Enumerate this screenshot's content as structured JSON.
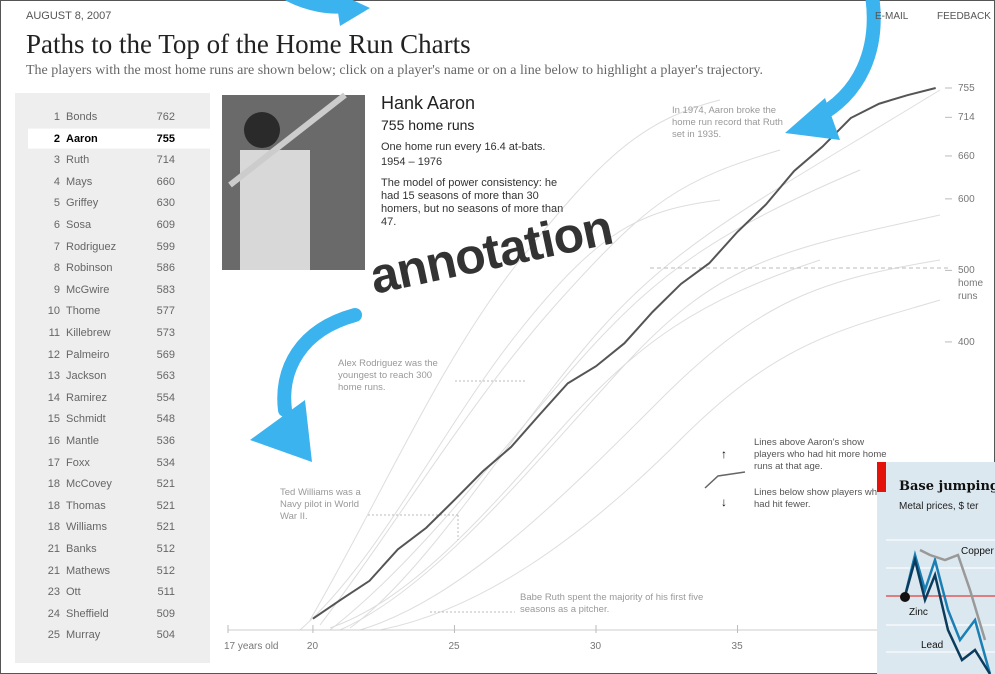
{
  "header": {
    "date": "AUGUST 8, 2007",
    "links": [
      "E-MAIL",
      "FEEDBACK"
    ],
    "title": "Paths to the Top of the Home Run Charts",
    "subtitle": "The players with the most home runs are shown below; click on a player's name or on a line below to highlight a player's trajectory."
  },
  "players": [
    [
      "1",
      "Bonds",
      "762"
    ],
    [
      "2",
      "Aaron",
      "755"
    ],
    [
      "3",
      "Ruth",
      "714"
    ],
    [
      "4",
      "Mays",
      "660"
    ],
    [
      "5",
      "Griffey",
      "630"
    ],
    [
      "6",
      "Sosa",
      "609"
    ],
    [
      "7",
      "Rodriguez",
      "599"
    ],
    [
      "8",
      "Robinson",
      "586"
    ],
    [
      "9",
      "McGwire",
      "583"
    ],
    [
      "10",
      "Thome",
      "577"
    ],
    [
      "11",
      "Killebrew",
      "573"
    ],
    [
      "12",
      "Palmeiro",
      "569"
    ],
    [
      "13",
      "Jackson",
      "563"
    ],
    [
      "14",
      "Ramirez",
      "554"
    ],
    [
      "15",
      "Schmidt",
      "548"
    ],
    [
      "16",
      "Mantle",
      "536"
    ],
    [
      "17",
      "Foxx",
      "534"
    ],
    [
      "18",
      "McCovey",
      "521"
    ],
    [
      "18",
      "Thomas",
      "521"
    ],
    [
      "18",
      "Williams",
      "521"
    ],
    [
      "21",
      "Banks",
      "512"
    ],
    [
      "21",
      "Mathews",
      "512"
    ],
    [
      "23",
      "Ott",
      "511"
    ],
    [
      "24",
      "Sheffield",
      "509"
    ],
    [
      "25",
      "Murray",
      "504"
    ]
  ],
  "feature": {
    "name": "Hank Aaron",
    "total": "755 home runs",
    "rate": "One home run every 16.4 at-bats.",
    "years": "1954 – 1976",
    "text": "The model of power consistency: he had 15 seasons of more than 30 homers, but no seasons of more than 47."
  },
  "chart_data": {
    "type": "line",
    "x": [
      20,
      21,
      22,
      23,
      24,
      25,
      26,
      27,
      28,
      29,
      30,
      31,
      32,
      33,
      34,
      35,
      36,
      37,
      38,
      39,
      40,
      41,
      42
    ],
    "series": [
      {
        "name": "Aaron",
        "color": "#555555",
        "values": [
          13,
          40,
          66,
          110,
          140,
          179,
          219,
          253,
          298,
          342,
          366,
          398,
          442,
          481,
          510,
          554,
          592,
          639,
          673,
          713,
          733,
          745,
          755
        ]
      }
    ],
    "xlim": [
      17,
      43
    ],
    "ylim": [
      0,
      755
    ],
    "xticks": [
      {
        "value": 17,
        "label": "17 years old"
      },
      20,
      25,
      30,
      35
    ],
    "yticks": [
      755,
      714,
      660,
      600,
      {
        "value": 500,
        "label": "500 home runs"
      },
      400
    ],
    "annotations": [
      "In 1974, Aaron broke the home run record that Ruth set in 1935.",
      "Alex Rodriguez was the youngest to reach 300 home runs.",
      "Ted Williams was a Navy pilot in World War II.",
      "Babe Ruth spent the majority of his first five seasons as a pitcher.",
      "Lines above Aaron's show players who had hit more home runs at that age.",
      "Lines below show players who had hit fewer."
    ]
  },
  "overlay": {
    "label": "annotation",
    "inset": {
      "title": "Base jumping",
      "subtitle": "Metal prices, $ ter",
      "labels": [
        "Copper",
        "Zinc",
        "Lead"
      ]
    }
  }
}
